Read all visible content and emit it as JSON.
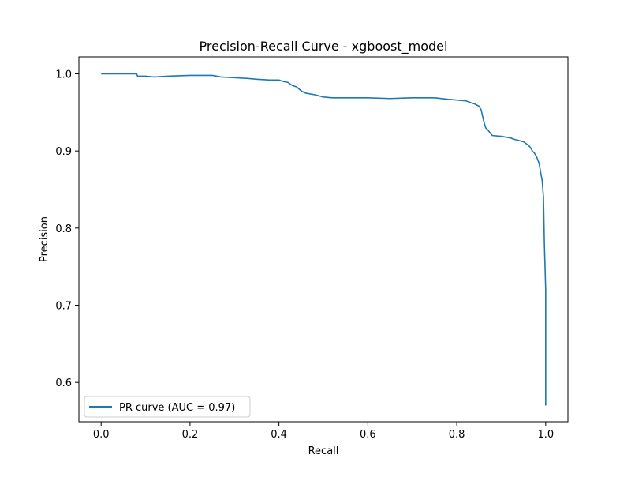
{
  "chart_data": {
    "type": "line",
    "title": "Precision-Recall Curve - xgboost_model",
    "xlabel": "Recall",
    "ylabel": "Precision",
    "xlim": [
      -0.05,
      1.05
    ],
    "ylim": [
      0.549,
      1.022
    ],
    "grid": false,
    "legend_position": "lower-left",
    "x_ticks": [
      {
        "value": 0.0,
        "label": "0.0"
      },
      {
        "value": 0.2,
        "label": "0.2"
      },
      {
        "value": 0.4,
        "label": "0.4"
      },
      {
        "value": 0.6,
        "label": "0.6"
      },
      {
        "value": 0.8,
        "label": "0.8"
      },
      {
        "value": 1.0,
        "label": "1.0"
      }
    ],
    "y_ticks": [
      {
        "value": 0.6,
        "label": "0.6"
      },
      {
        "value": 0.7,
        "label": "0.7"
      },
      {
        "value": 0.8,
        "label": "0.8"
      },
      {
        "value": 0.9,
        "label": "0.9"
      },
      {
        "value": 1.0,
        "label": "1.0"
      }
    ],
    "series": [
      {
        "name": "PR curve (AUC = 0.97)",
        "color": "#1f77b4",
        "x": [
          0.0,
          0.02,
          0.05,
          0.08,
          0.082,
          0.1,
          0.12,
          0.15,
          0.2,
          0.25,
          0.27,
          0.3,
          0.33,
          0.35,
          0.38,
          0.4,
          0.41,
          0.42,
          0.43,
          0.44,
          0.45,
          0.46,
          0.48,
          0.5,
          0.52,
          0.55,
          0.6,
          0.65,
          0.7,
          0.75,
          0.78,
          0.8,
          0.82,
          0.83,
          0.84,
          0.85,
          0.855,
          0.86,
          0.865,
          0.87,
          0.88,
          0.9,
          0.92,
          0.93,
          0.95,
          0.96,
          0.965,
          0.97,
          0.975,
          0.98,
          0.985,
          0.99,
          0.992,
          0.995,
          0.997,
          1.0,
          1.0
        ],
        "y": [
          1.0,
          1.0,
          1.0,
          1.0,
          0.997,
          0.997,
          0.996,
          0.997,
          0.998,
          0.998,
          0.996,
          0.995,
          0.994,
          0.993,
          0.992,
          0.992,
          0.99,
          0.989,
          0.985,
          0.983,
          0.978,
          0.975,
          0.973,
          0.97,
          0.969,
          0.969,
          0.969,
          0.968,
          0.969,
          0.969,
          0.967,
          0.966,
          0.965,
          0.963,
          0.961,
          0.958,
          0.953,
          0.94,
          0.93,
          0.927,
          0.92,
          0.919,
          0.917,
          0.915,
          0.912,
          0.908,
          0.905,
          0.9,
          0.897,
          0.892,
          0.884,
          0.868,
          0.862,
          0.84,
          0.78,
          0.72,
          0.57
        ]
      }
    ]
  }
}
